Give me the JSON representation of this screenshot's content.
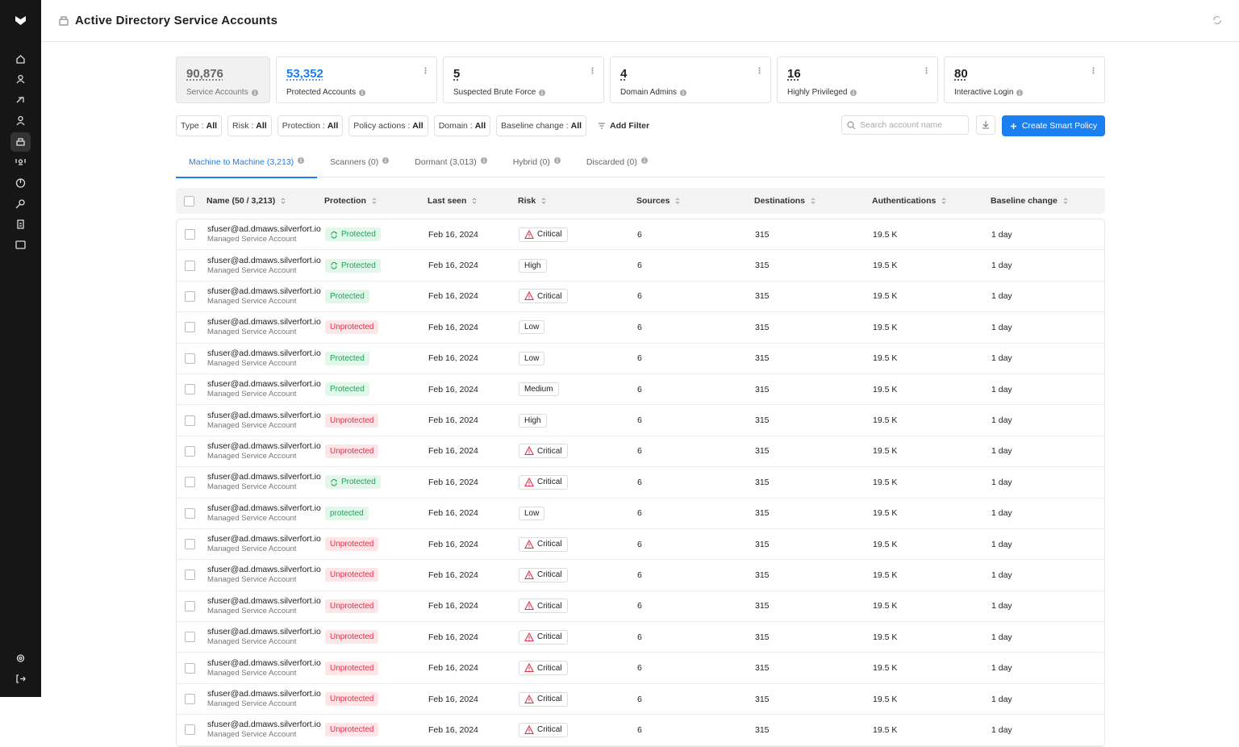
{
  "header": {
    "title": "Active Directory Service Accounts"
  },
  "stats": [
    {
      "value": "90,876",
      "label": "Service Accounts"
    },
    {
      "value": "53,352",
      "label": "Protected Accounts"
    },
    {
      "value": "5",
      "label": "Suspected Brute Force"
    },
    {
      "value": "4",
      "label": "Domain Admins"
    },
    {
      "value": "16",
      "label": "Highly Privileged"
    },
    {
      "value": "80",
      "label": "Interactive Login"
    }
  ],
  "filters": [
    {
      "key": "Type :",
      "value": "All"
    },
    {
      "key": "Risk :",
      "value": "All"
    },
    {
      "key": "Protection :",
      "value": "All"
    },
    {
      "key": "Policy actions :",
      "value": "All"
    },
    {
      "key": "Domain :",
      "value": "All"
    },
    {
      "key": "Baseline change :",
      "value": "All"
    }
  ],
  "add_filter": "Add Filter",
  "search_placeholder": "Search account name",
  "create_button": "Create Smart Policy",
  "tabs": [
    "Machine to Machine (3,213)",
    "Scanners (0)",
    "Dormant (3,013)",
    "Hybrid (0)",
    "Discarded (0)"
  ],
  "active_tab": 0,
  "table": {
    "columns": [
      "Name (50 / 3,213)",
      "Protection",
      "Last seen",
      "Risk",
      "Sources",
      "Destinations",
      "Authentications",
      "Baseline change"
    ],
    "rows": [
      {
        "name": "sfuser@ad.dmaws.silverfort.io",
        "type": "Managed Service Account",
        "protection": "Protected",
        "protected": true,
        "protection_icon": true,
        "last_seen": "Feb 16, 2024",
        "risk": "Critical",
        "risk_icon": true,
        "sources": "6",
        "destinations": "315",
        "authentications": "19.5 K",
        "baseline_change": "1 day"
      },
      {
        "name": "sfuser@ad.dmaws.silverfort.io",
        "type": "Managed Service Account",
        "protection": "Protected",
        "protected": true,
        "protection_icon": true,
        "last_seen": "Feb 16, 2024",
        "risk": "High",
        "risk_icon": false,
        "sources": "6",
        "destinations": "315",
        "authentications": "19.5 K",
        "baseline_change": "1 day"
      },
      {
        "name": "sfuser@ad.dmaws.silverfort.io",
        "type": "Managed Service Account",
        "protection": "Protected",
        "protected": true,
        "protection_icon": false,
        "last_seen": "Feb 16, 2024",
        "risk": "Critical",
        "risk_icon": true,
        "sources": "6",
        "destinations": "315",
        "authentications": "19.5 K",
        "baseline_change": "1 day"
      },
      {
        "name": "sfuser@ad.dmaws.silverfort.io",
        "type": "Managed Service Account",
        "protection": "Unprotected",
        "protected": false,
        "protection_icon": false,
        "last_seen": "Feb 16, 2024",
        "risk": "Low",
        "risk_icon": false,
        "sources": "6",
        "destinations": "315",
        "authentications": "19.5 K",
        "baseline_change": "1 day"
      },
      {
        "name": "sfuser@ad.dmaws.silverfort.io",
        "type": "Managed Service Account",
        "protection": "Protected",
        "protected": true,
        "protection_icon": false,
        "last_seen": "Feb 16, 2024",
        "risk": "Low",
        "risk_icon": false,
        "sources": "6",
        "destinations": "315",
        "authentications": "19.5 K",
        "baseline_change": "1 day"
      },
      {
        "name": "sfuser@ad.dmaws.silverfort.io",
        "type": "Managed Service Account",
        "protection": "Protected",
        "protected": true,
        "protection_icon": false,
        "last_seen": "Feb 16, 2024",
        "risk": "Medium",
        "risk_icon": false,
        "sources": "6",
        "destinations": "315",
        "authentications": "19.5 K",
        "baseline_change": "1 day"
      },
      {
        "name": "sfuser@ad.dmaws.silverfort.io",
        "type": "Managed Service Account",
        "protection": "Unprotected",
        "protected": false,
        "protection_icon": false,
        "last_seen": "Feb 16, 2024",
        "risk": "High",
        "risk_icon": false,
        "sources": "6",
        "destinations": "315",
        "authentications": "19.5 K",
        "baseline_change": "1 day"
      },
      {
        "name": "sfuser@ad.dmaws.silverfort.io",
        "type": "Managed Service Account",
        "protection": "Unprotected",
        "protected": false,
        "protection_icon": false,
        "last_seen": "Feb 16, 2024",
        "risk": "Critical",
        "risk_icon": true,
        "sources": "6",
        "destinations": "315",
        "authentications": "19.5 K",
        "baseline_change": "1 day"
      },
      {
        "name": "sfuser@ad.dmaws.silverfort.io",
        "type": "Managed Service Account",
        "protection": "Protected",
        "protected": true,
        "protection_icon": true,
        "last_seen": "Feb 16, 2024",
        "risk": "Critical",
        "risk_icon": true,
        "sources": "6",
        "destinations": "315",
        "authentications": "19.5 K",
        "baseline_change": "1 day"
      },
      {
        "name": "sfuser@ad.dmaws.silverfort.io",
        "type": "Managed Service Account",
        "protection": "protected",
        "protected": true,
        "protection_icon": false,
        "last_seen": "Feb 16, 2024",
        "risk": "Low",
        "risk_icon": false,
        "sources": "6",
        "destinations": "315",
        "authentications": "19.5 K",
        "baseline_change": "1 day"
      },
      {
        "name": "sfuser@ad.dmaws.silverfort.io",
        "type": "Managed Service Account",
        "protection": "Unprotected",
        "protected": false,
        "protection_icon": false,
        "last_seen": "Feb 16, 2024",
        "risk": "Critical",
        "risk_icon": true,
        "sources": "6",
        "destinations": "315",
        "authentications": "19.5 K",
        "baseline_change": "1 day"
      },
      {
        "name": "sfuser@ad.dmaws.silverfort.io",
        "type": "Managed Service Account",
        "protection": "Unprotected",
        "protected": false,
        "protection_icon": false,
        "last_seen": "Feb 16, 2024",
        "risk": "Critical",
        "risk_icon": true,
        "sources": "6",
        "destinations": "315",
        "authentications": "19.5 K",
        "baseline_change": "1 day"
      },
      {
        "name": "sfuser@ad.dmaws.silverfort.io",
        "type": "Managed Service Account",
        "protection": "Unprotected",
        "protected": false,
        "protection_icon": false,
        "last_seen": "Feb 16, 2024",
        "risk": "Critical",
        "risk_icon": true,
        "sources": "6",
        "destinations": "315",
        "authentications": "19.5 K",
        "baseline_change": "1 day"
      },
      {
        "name": "sfuser@ad.dmaws.silverfort.io",
        "type": "Managed Service Account",
        "protection": "Unprotected",
        "protected": false,
        "protection_icon": false,
        "last_seen": "Feb 16, 2024",
        "risk": "Critical",
        "risk_icon": true,
        "sources": "6",
        "destinations": "315",
        "authentications": "19.5 K",
        "baseline_change": "1 day"
      },
      {
        "name": "sfuser@ad.dmaws.silverfort.io",
        "type": "Managed Service Account",
        "protection": "Unprotected",
        "protected": false,
        "protection_icon": false,
        "last_seen": "Feb 16, 2024",
        "risk": "Critical",
        "risk_icon": true,
        "sources": "6",
        "destinations": "315",
        "authentications": "19.5 K",
        "baseline_change": "1 day"
      },
      {
        "name": "sfuser@ad.dmaws.silverfort.io",
        "type": "Managed Service Account",
        "protection": "Unprotected",
        "protected": false,
        "protection_icon": false,
        "last_seen": "Feb 16, 2024",
        "risk": "Critical",
        "risk_icon": true,
        "sources": "6",
        "destinations": "315",
        "authentications": "19.5 K",
        "baseline_change": "1 day"
      },
      {
        "name": "sfuser@ad.dmaws.silverfort.io",
        "type": "Managed Service Account",
        "protection": "Unprotected",
        "protected": false,
        "protection_icon": false,
        "last_seen": "Feb 16, 2024",
        "risk": "Critical",
        "risk_icon": true,
        "sources": "6",
        "destinations": "315",
        "authentications": "19.5 K",
        "baseline_change": "1 day"
      }
    ]
  }
}
